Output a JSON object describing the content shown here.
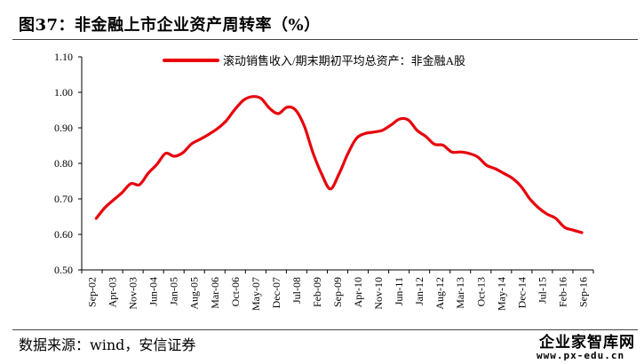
{
  "header": {
    "title": "图37：非金融上市企业资产周转率（%）"
  },
  "footer": {
    "source": "数据来源：wind，安信证券"
  },
  "watermark": {
    "name": "企业家智库网",
    "url": "www.px-edu.cn"
  },
  "chart_data": {
    "type": "line",
    "title": "",
    "xlabel": "",
    "ylabel": "",
    "ylim": [
      0.5,
      1.1
    ],
    "yticks": [
      0.5,
      0.6,
      0.7,
      0.8,
      0.9,
      1.0,
      1.1
    ],
    "x_ticklabels": [
      "Sep-02",
      "Apr-03",
      "Nov-03",
      "Jun-04",
      "Jan-05",
      "Aug-05",
      "Mar-06",
      "Oct-06",
      "May-07",
      "Dec-07",
      "Jul-08",
      "Feb-09",
      "Sep-09",
      "Apr-10",
      "Nov-10",
      "Jun-11",
      "Jan-12",
      "Aug-12",
      "Mar-13",
      "Oct-13",
      "May-14",
      "Dec-14",
      "Jul-15",
      "Feb-16",
      "Sep-16"
    ],
    "grid": false,
    "legend_position": "top",
    "line_color": "#e8000b",
    "series": [
      {
        "name": "滚动销售收入/期末期初平均总资产：非金融A股",
        "x": [
          "2002-09",
          "2002-12",
          "2003-03",
          "2003-06",
          "2003-09",
          "2003-12",
          "2004-03",
          "2004-06",
          "2004-09",
          "2004-12",
          "2005-03",
          "2005-06",
          "2005-09",
          "2005-12",
          "2006-03",
          "2006-06",
          "2006-09",
          "2006-12",
          "2007-03",
          "2007-06",
          "2007-09",
          "2007-12",
          "2008-03",
          "2008-06",
          "2008-09",
          "2008-12",
          "2009-03",
          "2009-06",
          "2009-09",
          "2009-12",
          "2010-03",
          "2010-06",
          "2010-09",
          "2010-12",
          "2011-03",
          "2011-06",
          "2011-09",
          "2011-12",
          "2012-03",
          "2012-06",
          "2012-09",
          "2012-12",
          "2013-03",
          "2013-06",
          "2013-09",
          "2013-12",
          "2014-03",
          "2014-06",
          "2014-09",
          "2014-12",
          "2015-03",
          "2015-06",
          "2015-09",
          "2015-12",
          "2016-03",
          "2016-06",
          "2016-09"
        ],
        "values": [
          0.645,
          0.675,
          0.697,
          0.718,
          0.743,
          0.74,
          0.772,
          0.797,
          0.828,
          0.82,
          0.83,
          0.855,
          0.868,
          0.882,
          0.898,
          0.92,
          0.952,
          0.978,
          0.988,
          0.983,
          0.955,
          0.94,
          0.958,
          0.95,
          0.905,
          0.83,
          0.77,
          0.728,
          0.77,
          0.826,
          0.87,
          0.884,
          0.888,
          0.893,
          0.908,
          0.925,
          0.922,
          0.893,
          0.876,
          0.854,
          0.851,
          0.832,
          0.832,
          0.828,
          0.818,
          0.795,
          0.785,
          0.772,
          0.758,
          0.735,
          0.7,
          0.675,
          0.657,
          0.645,
          0.62,
          0.612,
          0.605
        ]
      }
    ]
  }
}
